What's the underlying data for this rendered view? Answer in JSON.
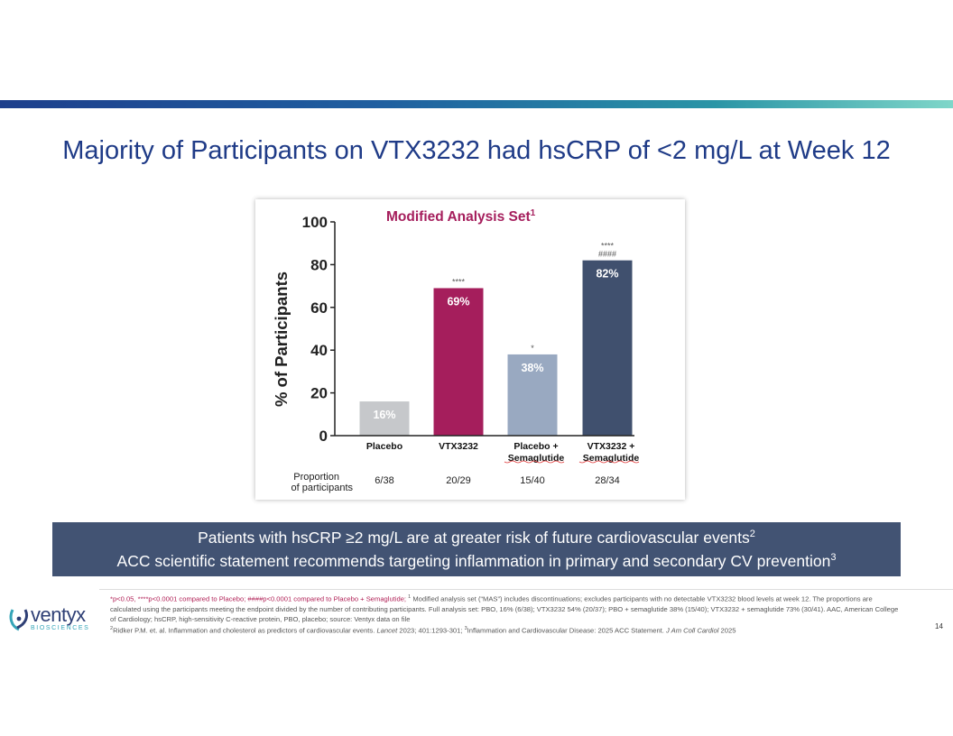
{
  "slide": {
    "title": "Majority of Participants on VTX3232 had hsCRP of <2 mg/L at Week 12",
    "page_number": "14"
  },
  "chart_data": {
    "type": "bar",
    "title": "Modified Analysis Set",
    "title_superscript": "1",
    "ylabel": "% of Participants",
    "ylim": [
      0,
      100
    ],
    "yticks": [
      "0",
      "20",
      "40",
      "60",
      "80",
      "100"
    ],
    "categories": [
      [
        "Placebo"
      ],
      [
        "VTX3232"
      ],
      [
        "Placebo +",
        "Semaglutide"
      ],
      [
        "VTX3232 +",
        "Semaglutide"
      ]
    ],
    "values": [
      16,
      69,
      38,
      82
    ],
    "value_labels": [
      "16%",
      "69%",
      "38%",
      "82%"
    ],
    "colors": [
      "#c6c8cb",
      "#a51e5c",
      "#99a9c1",
      "#40506e"
    ],
    "value_label_colors": [
      "#ffffff",
      "#ffffff",
      "#ffffff",
      "#ffffff"
    ],
    "significance": [
      [],
      [
        "****"
      ],
      [
        "*"
      ],
      [
        "****",
        "####"
      ]
    ],
    "proportion_label": [
      "Proportion",
      "of participants"
    ],
    "proportions": [
      "6/38",
      "20/29",
      "15/40",
      "28/34"
    ]
  },
  "banner": {
    "line1": "Patients with hsCRP ≥2 mg/L are at greater risk of future cardiovascular events",
    "line1_sup": "2",
    "line2": "ACC scientific statement recommends targeting inflammation in primary and secondary CV prevention",
    "line2_sup": "3"
  },
  "footnote": {
    "sig_text": "*p<0.05, ****p<0.0001 compared to Placebo; ####p<0.0001 compared to Placebo + Semaglutide;",
    "sup1": "1",
    "text1": " Modified analysis set (“MAS”) includes discontinuations; excludes participants with no detectable VTX3232 blood levels at week 12. The proportions are calculated using the participants meeting the endpoint divided by the number of contributing participants. Full analysis set: PBO, 16% (6/38); VTX3232 54% (20/37); PBO + semaglutide 38% (15/40); VTX3232 + semaglutide 73% (30/41). AAC, American College of Cardiology; hsCRP, high-sensitivity C-reactive protein, PBO, placebo; source: Ventyx data on file",
    "sup2": "2",
    "text2a": "Ridker P.M. et. al. Inflammation and cholesterol as predictors of cardiovascular events.",
    "text2_journal": "Lancet",
    "text2b": "2023; 401:1293-301;",
    "sup3": "3",
    "text3a": "Inflammation and Cardiovascular Disease: 2025 ACC Statement.",
    "text3_journal": "J Am Coll Cardiol",
    "text3b": "2025"
  },
  "logo": {
    "name": "ventyx",
    "sub": "BIOSCIENCES",
    "colors": {
      "name": "#2e3f75",
      "sub": "#35a5b8"
    }
  }
}
